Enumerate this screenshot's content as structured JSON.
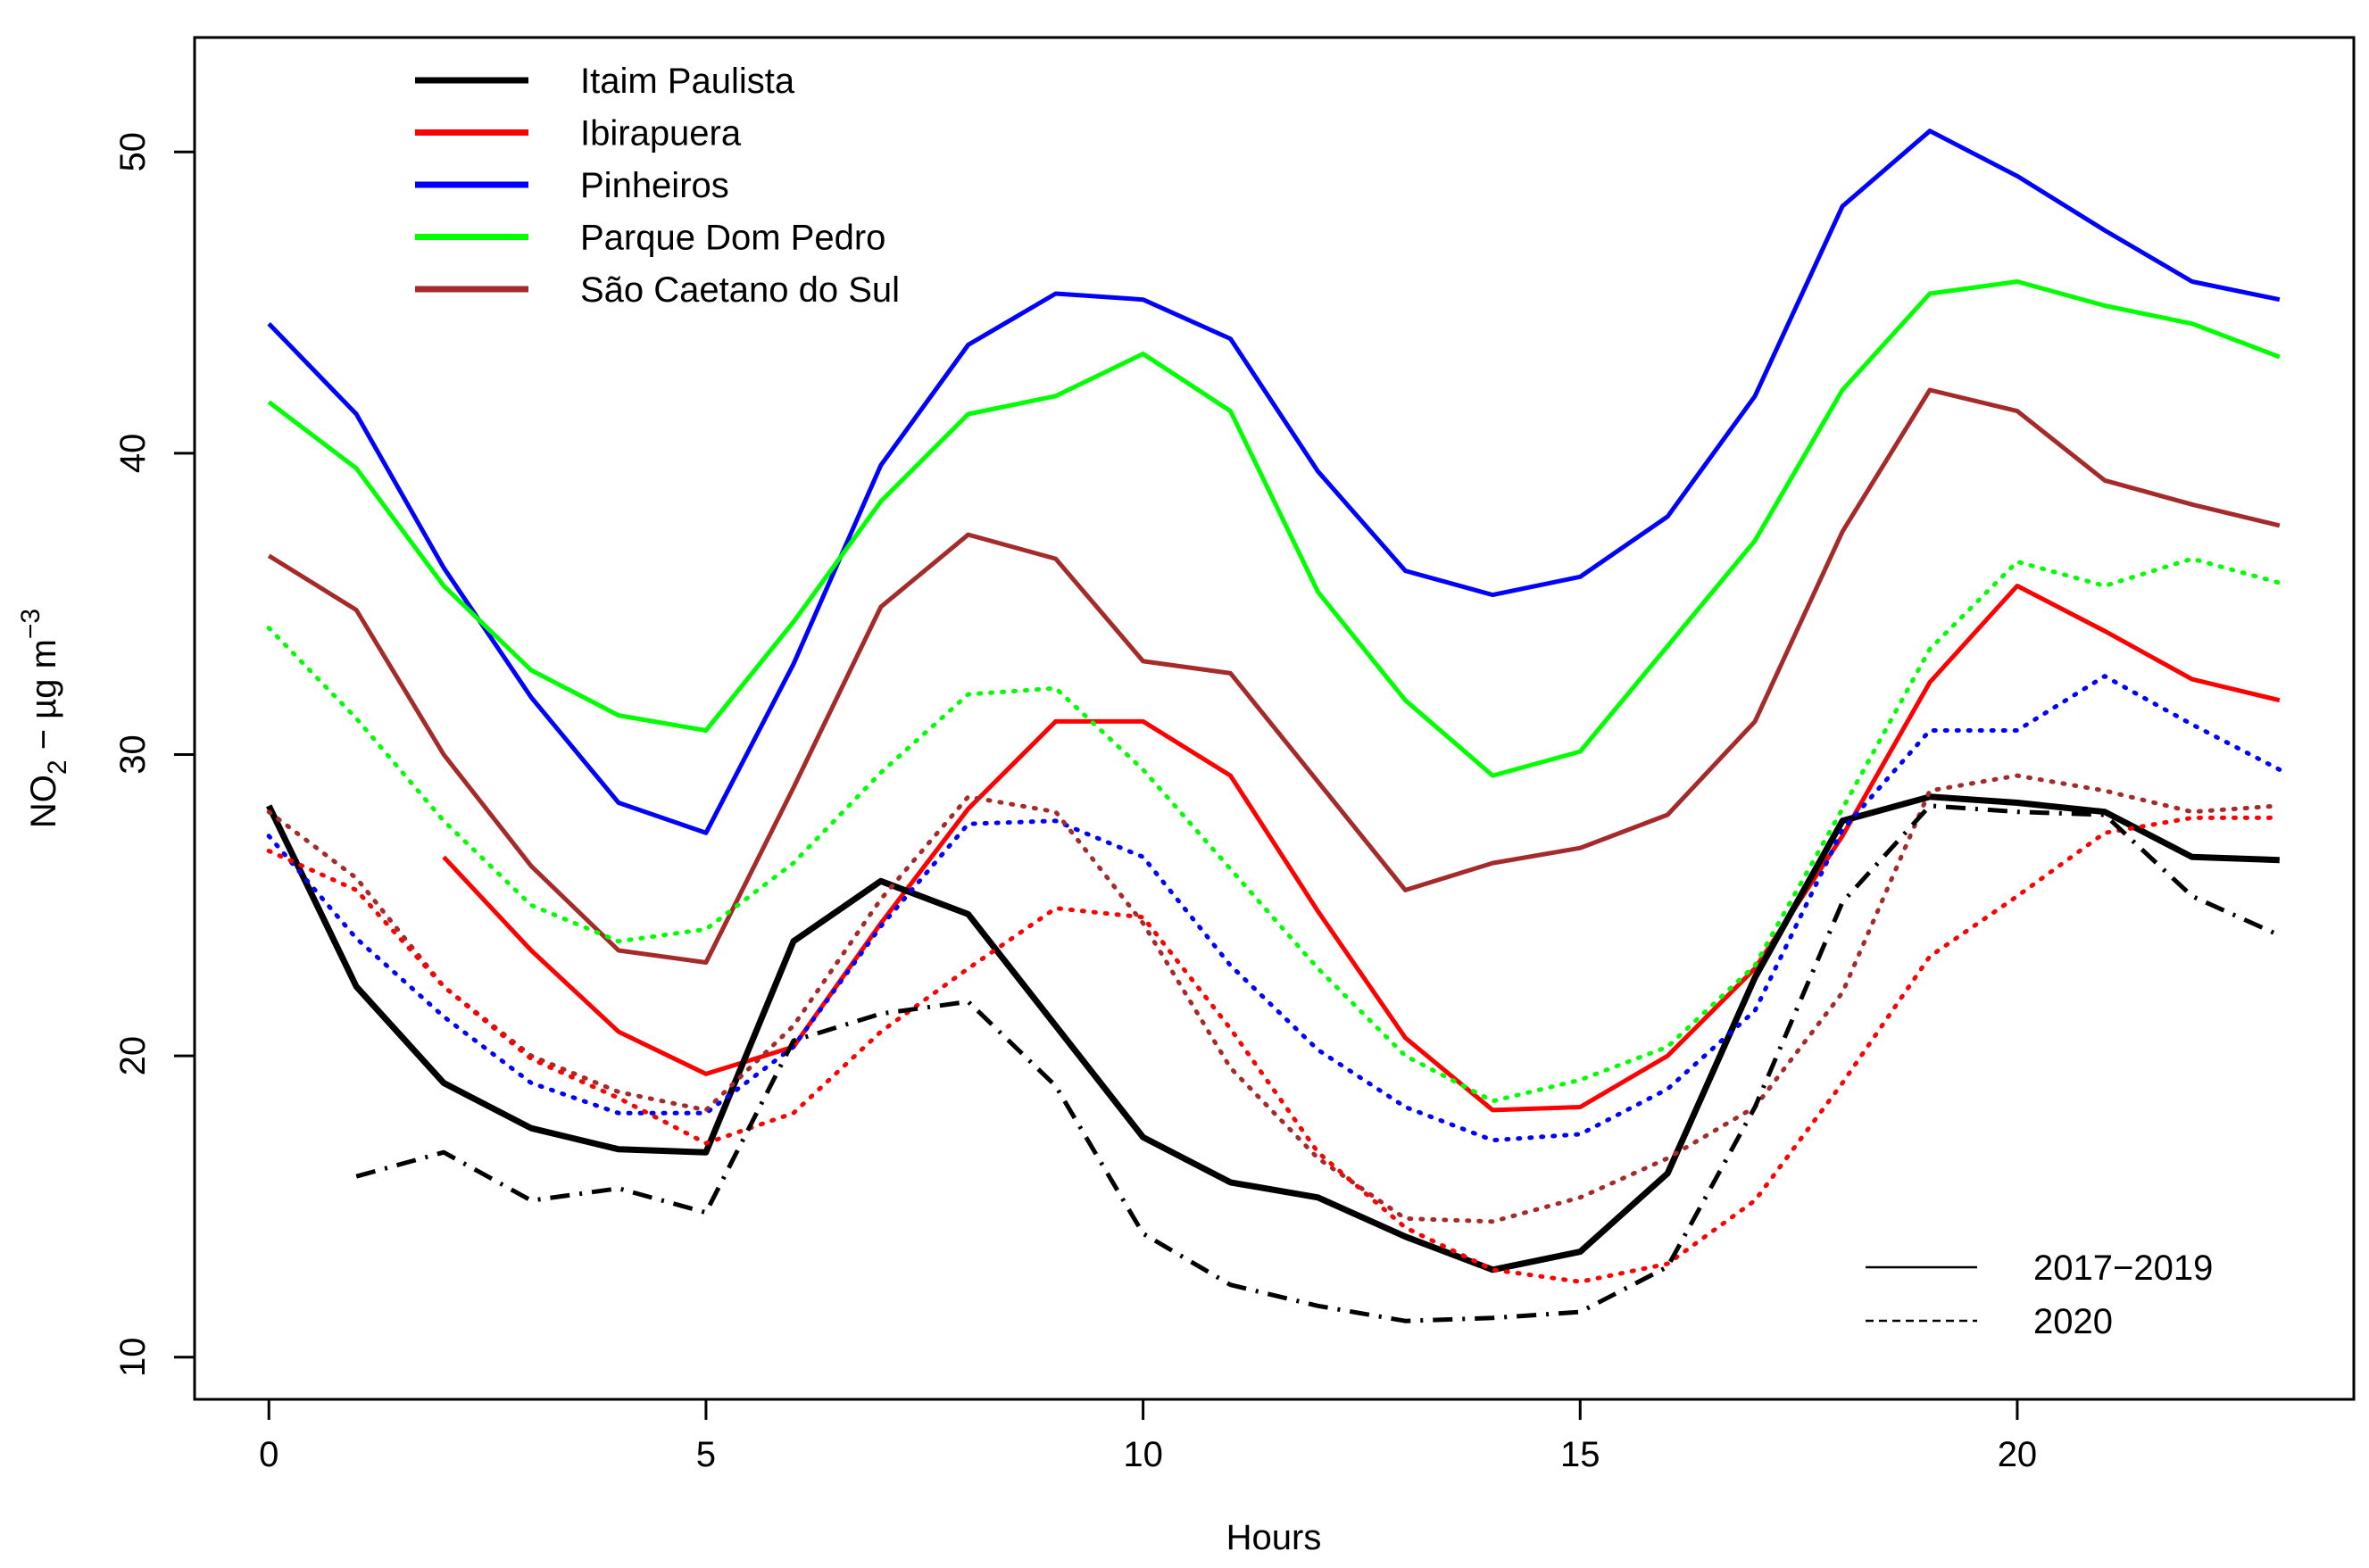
{
  "chart_data": {
    "type": "line",
    "title": "",
    "xlabel": "Hours",
    "ylabel": {
      "prefix": "NO",
      "sub": "2",
      "middle": " − µg m",
      "sup": "−3"
    },
    "xlim": [
      -0.85,
      23.85
    ],
    "ylim": [
      8.6,
      53.8
    ],
    "xticks": [
      0,
      5,
      10,
      15,
      20
    ],
    "xtick_labels": [
      "0",
      "5",
      "10",
      "15",
      "20"
    ],
    "yticks": [
      10,
      20,
      30,
      40,
      50
    ],
    "ytick_labels": [
      "10",
      "20",
      "30",
      "40",
      "50"
    ],
    "grid": false,
    "legend_placement": "top-left",
    "period_legend_placement": "bottom-right",
    "stations": [
      {
        "name": "Itaim Paulista",
        "color": "#000000"
      },
      {
        "name": "Ibirapuera",
        "color": "#ff0000"
      },
      {
        "name": "Pinheiros",
        "color": "#0000ff"
      },
      {
        "name": "Parque Dom Pedro",
        "color": "#00ff00"
      },
      {
        "name": "São Caetano do Sul",
        "color": "#a52a2a"
      }
    ],
    "periods": [
      {
        "label": "2017−2019",
        "style": "solid"
      },
      {
        "label": "2020",
        "style": "dashed"
      }
    ],
    "x": [
      0,
      1,
      2,
      3,
      4,
      5,
      6,
      7,
      8,
      9,
      10,
      11,
      12,
      13,
      14,
      15,
      16,
      17,
      18,
      19,
      20,
      21,
      22,
      23
    ],
    "series": [
      {
        "station": "Pinheiros",
        "period": "2017−2019",
        "color": "#0000ff",
        "dash": "solid",
        "width": 5,
        "values": [
          44.3,
          41.3,
          36.2,
          31.9,
          28.4,
          27.4,
          33.0,
          39.6,
          43.6,
          45.3,
          45.1,
          43.8,
          39.4,
          36.1,
          35.3,
          35.9,
          37.9,
          41.9,
          48.2,
          50.7,
          49.2,
          47.4,
          45.7,
          45.1
        ]
      },
      {
        "station": "Parque Dom Pedro",
        "period": "2017−2019",
        "color": "#00ff00",
        "dash": "solid",
        "width": 5,
        "values": [
          41.7,
          39.5,
          35.6,
          32.8,
          31.3,
          30.8,
          34.4,
          38.4,
          41.3,
          41.9,
          43.3,
          41.4,
          35.4,
          31.8,
          29.3,
          30.1,
          33.6,
          37.1,
          42.1,
          45.3,
          45.7,
          44.9,
          44.3,
          43.2
        ]
      },
      {
        "station": "São Caetano do Sul",
        "period": "2017−2019",
        "color": "#a52a2a",
        "dash": "solid",
        "width": 5,
        "values": [
          36.6,
          34.8,
          30.0,
          26.3,
          23.5,
          23.1,
          28.9,
          34.9,
          37.3,
          36.5,
          33.1,
          32.7,
          29.1,
          25.5,
          26.4,
          26.9,
          28.0,
          31.1,
          37.4,
          42.1,
          41.4,
          39.1,
          38.3,
          37.6
        ]
      },
      {
        "station": "Ibirapuera",
        "period": "2017−2019",
        "color": "#ff0000",
        "dash": "solid",
        "width": 5,
        "values": [
          null,
          null,
          26.6,
          23.5,
          20.8,
          19.4,
          20.3,
          24.4,
          28.2,
          31.1,
          31.1,
          29.3,
          24.8,
          20.6,
          18.2,
          18.3,
          20.0,
          22.9,
          27.3,
          32.4,
          35.6,
          34.1,
          32.5,
          31.8
        ]
      },
      {
        "station": "Itaim Paulista",
        "period": "2017−2019",
        "color": "#000000",
        "dash": "solid",
        "width": 7,
        "values": [
          28.3,
          22.3,
          19.1,
          17.6,
          16.9,
          16.8,
          23.8,
          25.8,
          24.7,
          21.0,
          17.3,
          15.8,
          15.3,
          14.0,
          12.9,
          13.5,
          16.1,
          22.6,
          27.8,
          28.6,
          28.4,
          28.1,
          26.6,
          26.5
        ]
      },
      {
        "station": "Parque Dom Pedro",
        "period": "2020",
        "color": "#00ff00",
        "dash": "dotted",
        "width": 5,
        "values": [
          34.2,
          31.2,
          27.8,
          25.0,
          23.8,
          24.2,
          26.4,
          29.4,
          32.0,
          32.2,
          29.5,
          26.2,
          22.9,
          20.0,
          18.5,
          19.2,
          20.3,
          23.0,
          28.2,
          33.5,
          36.4,
          35.6,
          36.5,
          35.7
        ]
      },
      {
        "station": "Pinheiros",
        "period": "2020",
        "color": "#0000ff",
        "dash": "dotted",
        "width": 5,
        "values": [
          27.3,
          23.9,
          21.3,
          19.1,
          18.1,
          18.1,
          20.3,
          24.3,
          27.7,
          27.8,
          26.6,
          23.0,
          20.2,
          18.3,
          17.2,
          17.4,
          18.9,
          21.5,
          27.5,
          30.8,
          30.8,
          32.6,
          31.0,
          29.5
        ]
      },
      {
        "station": "São Caetano do Sul",
        "period": "2020",
        "color": "#a52a2a",
        "dash": "dotted",
        "width": 5,
        "values": [
          28.1,
          25.9,
          22.3,
          20.0,
          18.8,
          18.2,
          21.0,
          25.2,
          28.6,
          28.1,
          24.4,
          19.6,
          16.6,
          14.6,
          14.5,
          15.3,
          16.6,
          18.3,
          22.1,
          28.8,
          29.3,
          28.8,
          28.1,
          28.3
        ]
      },
      {
        "station": "Ibirapuera",
        "period": "2020",
        "color": "#ff0000",
        "dash": "dotted",
        "width": 5,
        "values": [
          26.8,
          25.5,
          22.3,
          19.9,
          18.6,
          17.1,
          18.1,
          20.8,
          22.9,
          24.9,
          24.6,
          20.9,
          16.8,
          14.3,
          12.9,
          12.5,
          13.1,
          15.2,
          19.1,
          23.3,
          25.3,
          27.4,
          27.9,
          27.9
        ]
      },
      {
        "station": "Itaim Paulista",
        "period": "2020",
        "color": "#000000",
        "dash": "dashdot",
        "width": 5,
        "values": [
          null,
          16.0,
          16.8,
          15.2,
          15.6,
          14.8,
          20.5,
          21.4,
          21.8,
          19.0,
          14.1,
          12.4,
          11.7,
          11.2,
          11.3,
          11.5,
          13.0,
          18.3,
          25.1,
          28.3,
          28.1,
          28.0,
          25.3,
          24.0
        ]
      }
    ]
  }
}
